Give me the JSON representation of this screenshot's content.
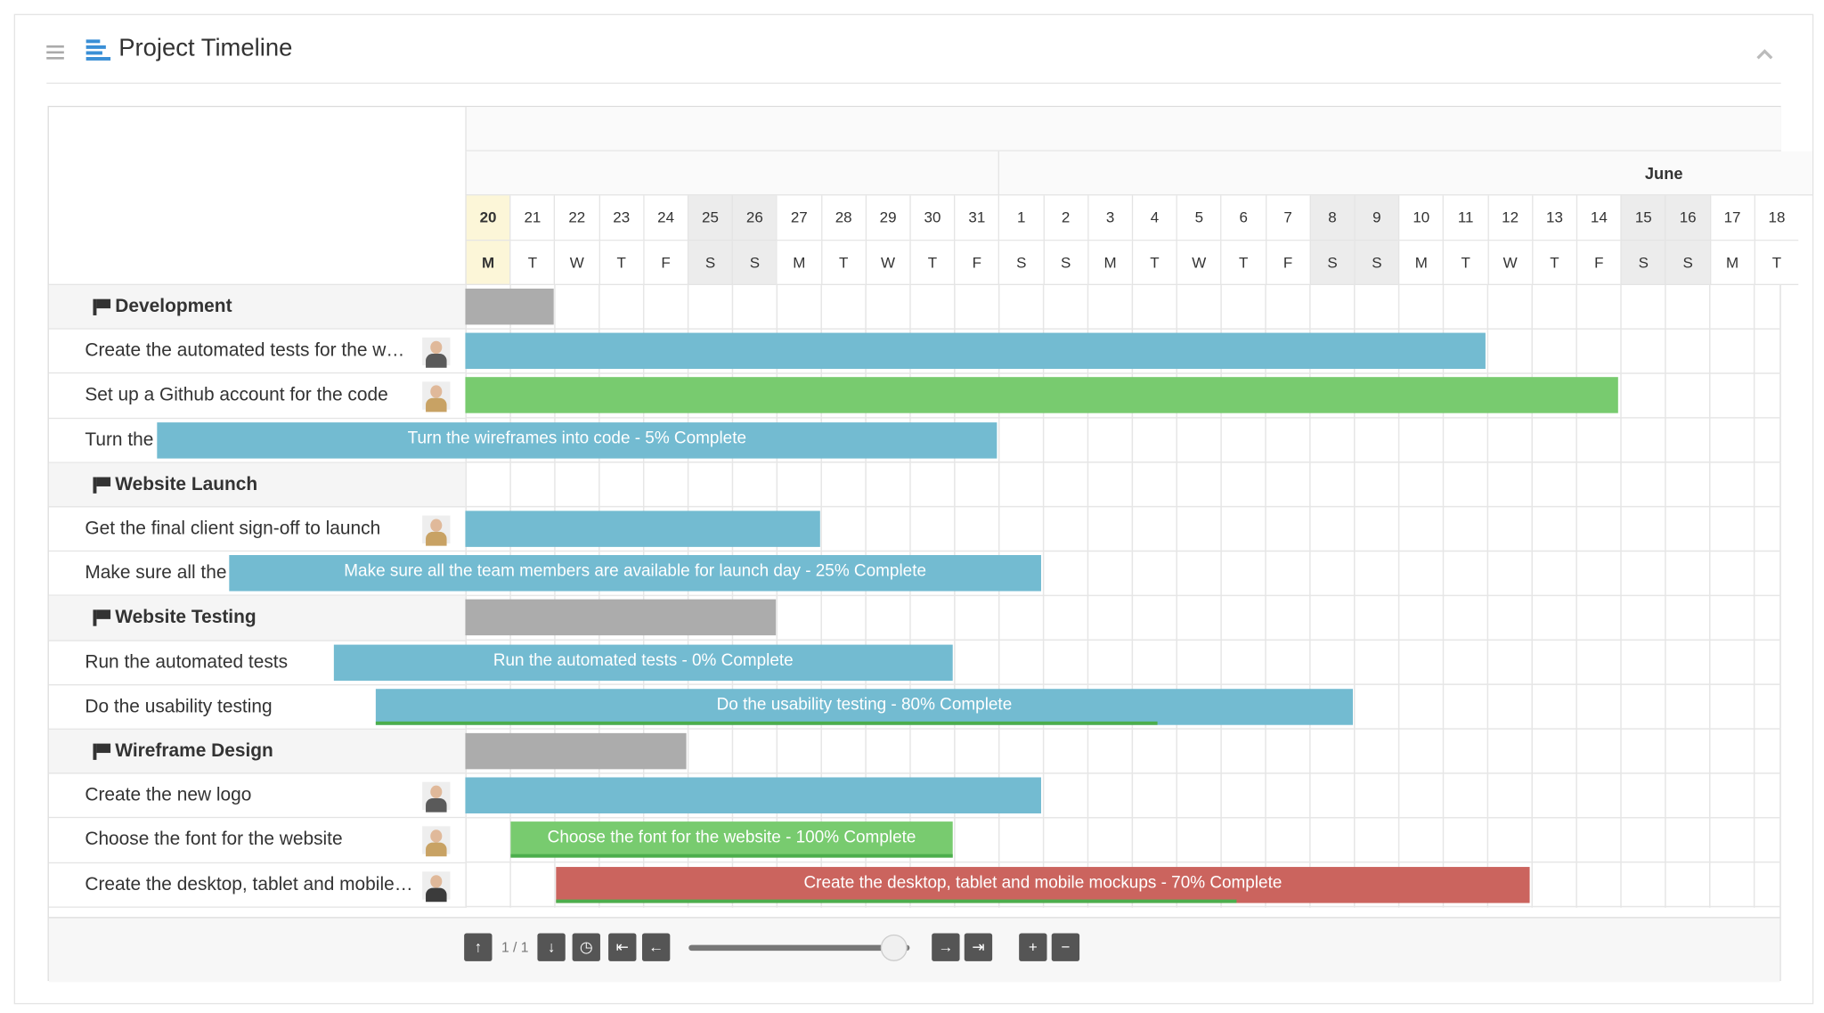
{
  "header": {
    "title": "Project Timeline"
  },
  "timeline": {
    "month": "June",
    "days": [
      20,
      21,
      22,
      23,
      24,
      25,
      26,
      27,
      28,
      29,
      30,
      31,
      1,
      2,
      3,
      4,
      5,
      6,
      7,
      8,
      9,
      10,
      11,
      12,
      13,
      14,
      15,
      16,
      17,
      18
    ],
    "weekdays": [
      "M",
      "T",
      "W",
      "T",
      "F",
      "S",
      "S",
      "M",
      "T",
      "W",
      "T",
      "F",
      "S",
      "S",
      "M",
      "T",
      "W",
      "T",
      "F",
      "S",
      "S",
      "M",
      "T",
      "W",
      "T",
      "F",
      "S",
      "S",
      "M",
      "T"
    ]
  },
  "groups": [
    {
      "name": "Development",
      "tasks": [
        {
          "name": "Create the automated tests for the w…"
        },
        {
          "name": "Set up a Github account for the code"
        },
        {
          "name": "Turn the wireframes into code",
          "bar_label": "Turn the wireframes into code - 5% Complete"
        }
      ]
    },
    {
      "name": "Website Launch",
      "tasks": [
        {
          "name": "Get the final client sign-off to launch"
        },
        {
          "name": "Make sure all the team members are …",
          "bar_label": "Make sure all the team members are available for launch day - 25% Complete"
        }
      ]
    },
    {
      "name": "Website Testing",
      "tasks": [
        {
          "name": "Run the automated tests",
          "bar_label": "Run the automated tests - 0% Complete"
        },
        {
          "name": "Do the usability testing",
          "bar_label": "Do the usability testing - 80% Complete"
        }
      ]
    },
    {
      "name": "Wireframe Design",
      "tasks": [
        {
          "name": "Create the new logo"
        },
        {
          "name": "Choose the font for the website",
          "bar_label": "Choose the font for the website - 100% Complete"
        },
        {
          "name": "Create the desktop, tablet and mobile…",
          "bar_label": "Create the desktop, tablet and mobile mockups - 70% Complete"
        }
      ]
    }
  ],
  "footer": {
    "page": "1 / 1"
  }
}
